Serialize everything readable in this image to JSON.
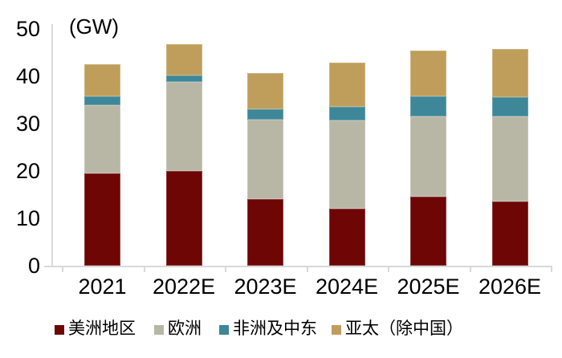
{
  "chart_data": {
    "type": "bar",
    "stacked": true,
    "unit": "(GW)",
    "categories": [
      "2021",
      "2022E",
      "2023E",
      "2024E",
      "2025E",
      "2026E"
    ],
    "series": [
      {
        "name": "美洲地区",
        "color": "#6E0606",
        "values": [
          19.5,
          20.0,
          14.0,
          12.0,
          14.5,
          13.5
        ]
      },
      {
        "name": "欧洲",
        "color": "#B8B7A6",
        "values": [
          14.4,
          18.8,
          16.9,
          18.7,
          17.1,
          18.0
        ]
      },
      {
        "name": "非洲及中东",
        "color": "#3D8798",
        "values": [
          1.9,
          1.4,
          2.1,
          2.9,
          4.2,
          4.1
        ]
      },
      {
        "name": "亚太（除中国）",
        "color": "#BF9E5B",
        "values": [
          6.7,
          6.6,
          7.7,
          9.2,
          9.7,
          10.2
        ]
      }
    ],
    "totals": [
      42.5,
      46.8,
      40.7,
      42.8,
      45.5,
      45.8
    ],
    "ylim": [
      0,
      50
    ],
    "yticks": [
      0,
      10,
      20,
      30,
      40,
      50
    ],
    "grid": false,
    "legend_position": "bottom",
    "axis_color": "#D9D9D9",
    "text_color": "#000000"
  }
}
